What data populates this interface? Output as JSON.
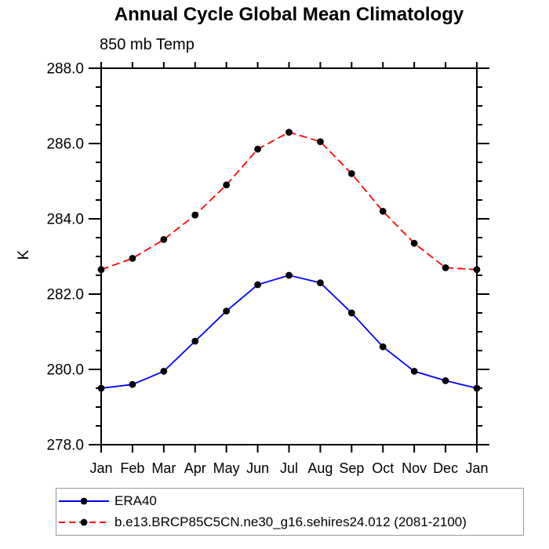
{
  "chart_data": {
    "type": "line",
    "title": "Annual Cycle Global Mean Climatology",
    "subtitle": "850 mb Temp",
    "ylabel": "K",
    "xlabel": "",
    "x_categories": [
      "Jan",
      "Feb",
      "Mar",
      "Apr",
      "May",
      "Jun",
      "Jul",
      "Aug",
      "Sep",
      "Oct",
      "Nov",
      "Dec",
      "Jan"
    ],
    "ylim": [
      278.0,
      288.0
    ],
    "ytick_major": 2.0,
    "ytick_minor": 0.5,
    "ytick_labels": [
      "278.0",
      "280.0",
      "282.0",
      "284.0",
      "286.0",
      "288.0"
    ],
    "grid": false,
    "legend_position": "bottom box",
    "axis_color": "#000000",
    "marker": "filled-circle",
    "marker_color": "#000000",
    "series": [
      {
        "name": "ERA40",
        "color": "#0000ff",
        "line_style": "solid",
        "values": [
          279.5,
          279.6,
          279.95,
          280.75,
          281.55,
          282.25,
          282.5,
          282.3,
          281.5,
          280.6,
          279.95,
          279.7,
          279.5
        ]
      },
      {
        "name": "b.e13.BRCP85C5CN.ne30_g16.sehires24.012 (2081-2100)",
        "color": "#ff0000",
        "line_style": "dashed",
        "values": [
          282.65,
          282.95,
          283.45,
          284.1,
          284.9,
          285.85,
          286.3,
          286.05,
          285.2,
          284.2,
          283.35,
          282.7,
          282.65
        ]
      }
    ]
  }
}
